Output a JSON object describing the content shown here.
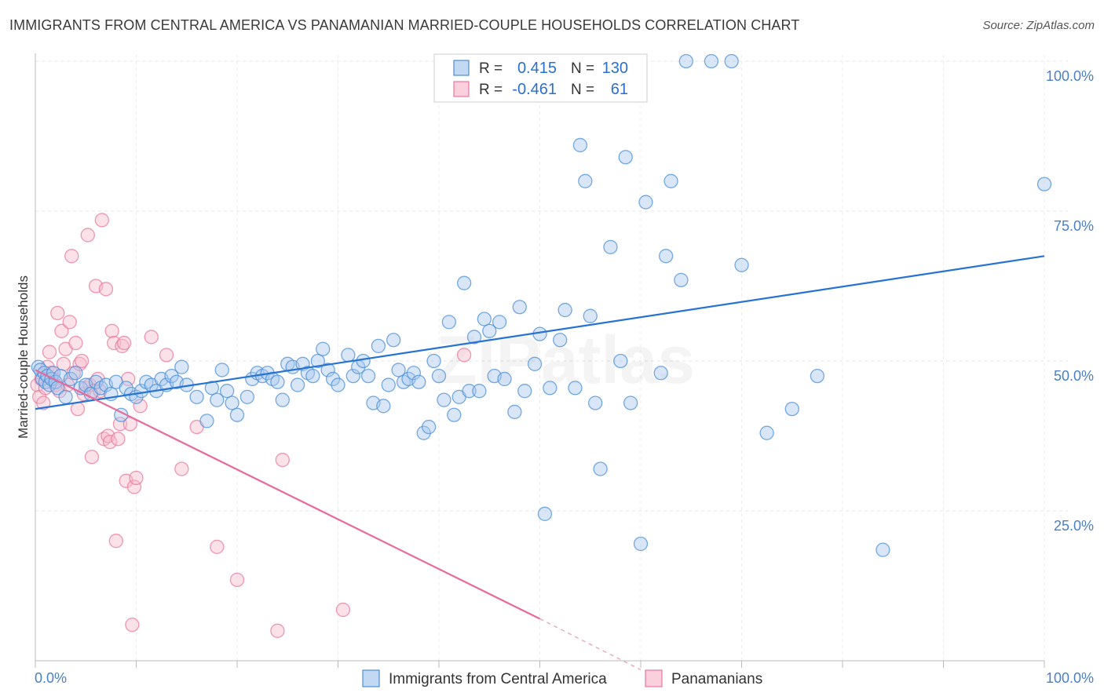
{
  "title": "IMMIGRANTS FROM CENTRAL AMERICA VS PANAMANIAN MARRIED-COUPLE HOUSEHOLDS CORRELATION CHART",
  "source": "Source: ZipAtlas.com",
  "watermark": "ZIPatlas",
  "colors": {
    "blue": "#4a8fd8",
    "blue_fill": "#a9c8ee",
    "blue_line": "#2673d3",
    "pink": "#e8779c",
    "pink_fill": "#f6bccd",
    "pink_line": "#e8699a",
    "tick_label": "#4a7fc6",
    "grid": "#e4e4e4"
  },
  "legend_top": {
    "rows": [
      {
        "r_label": "R =",
        "r_value": "0.415",
        "n_label": "N =",
        "n_value": "130",
        "color": "blue"
      },
      {
        "r_label": "R =",
        "r_value": "-0.461",
        "n_label": "N =",
        "n_value": "61",
        "color": "pink"
      }
    ]
  },
  "legend_bottom": {
    "items": [
      {
        "label": "Immigrants from Central America",
        "color": "blue"
      },
      {
        "label": "Panamanians",
        "color": "pink"
      }
    ]
  },
  "chart_data": {
    "type": "scatter",
    "title": "IMMIGRANTS FROM CENTRAL AMERICA VS PANAMANIAN MARRIED-COUPLE HOUSEHOLDS CORRELATION CHART",
    "xlabel": "",
    "ylabel": "Married-couple Households",
    "xlim": [
      0,
      100
    ],
    "ylim": [
      0,
      102
    ],
    "x_tick_labels": [
      {
        "value": 0,
        "label": "0.0%"
      },
      {
        "value": 100,
        "label": "100.0%"
      }
    ],
    "y_tick_labels": [
      {
        "value": 25,
        "label": "25.0%"
      },
      {
        "value": 50,
        "label": "50.0%"
      },
      {
        "value": 75,
        "label": "75.0%"
      },
      {
        "value": 100,
        "label": "100.0%"
      }
    ],
    "grid": true,
    "legend_position": "top-center",
    "series": [
      {
        "name": "Immigrants from Central America",
        "color": "blue",
        "trend": {
          "x": [
            0,
            100
          ],
          "y": [
            42.0,
            67.5
          ],
          "solid_to": 100
        },
        "points": [
          [
            0.3,
            49
          ],
          [
            0.5,
            48.5
          ],
          [
            0.7,
            47
          ],
          [
            0.9,
            48
          ],
          [
            1.0,
            46.5
          ],
          [
            1.2,
            47.5
          ],
          [
            1.4,
            46
          ],
          [
            1.6,
            47
          ],
          [
            1.8,
            48
          ],
          [
            2.0,
            46.5
          ],
          [
            2.2,
            45.5
          ],
          [
            2.5,
            47.5
          ],
          [
            3.0,
            44
          ],
          [
            3.5,
            47
          ],
          [
            4.0,
            48
          ],
          [
            4.5,
            45.5
          ],
          [
            5.0,
            46
          ],
          [
            5.5,
            44.5
          ],
          [
            6.0,
            46.5
          ],
          [
            6.5,
            45.5
          ],
          [
            7.0,
            46
          ],
          [
            7.5,
            44.5
          ],
          [
            8.0,
            46.5
          ],
          [
            8.5,
            41
          ],
          [
            9.0,
            45.5
          ],
          [
            9.5,
            44.5
          ],
          [
            10.0,
            44
          ],
          [
            10.5,
            45
          ],
          [
            11.0,
            46.5
          ],
          [
            11.5,
            46
          ],
          [
            12.0,
            45
          ],
          [
            12.5,
            47
          ],
          [
            13.0,
            46
          ],
          [
            13.5,
            47.5
          ],
          [
            14.0,
            46.5
          ],
          [
            14.5,
            49
          ],
          [
            15.0,
            46
          ],
          [
            16.0,
            44
          ],
          [
            17.0,
            40
          ],
          [
            17.5,
            45.5
          ],
          [
            18.0,
            43.5
          ],
          [
            18.5,
            48.5
          ],
          [
            19.0,
            45
          ],
          [
            19.5,
            43
          ],
          [
            20.0,
            41
          ],
          [
            21.0,
            44
          ],
          [
            21.5,
            47
          ],
          [
            22.0,
            48
          ],
          [
            22.5,
            47.5
          ],
          [
            23.0,
            48
          ],
          [
            23.5,
            47
          ],
          [
            24.0,
            46.5
          ],
          [
            24.5,
            43.5
          ],
          [
            25.0,
            49.5
          ],
          [
            25.5,
            49
          ],
          [
            26.0,
            46
          ],
          [
            26.5,
            49.5
          ],
          [
            27.0,
            48
          ],
          [
            27.5,
            47.5
          ],
          [
            28.0,
            50
          ],
          [
            28.5,
            52
          ],
          [
            29.0,
            48.5
          ],
          [
            29.5,
            47
          ],
          [
            30.0,
            46
          ],
          [
            31.0,
            51
          ],
          [
            31.5,
            47.5
          ],
          [
            32.0,
            49
          ],
          [
            32.5,
            50
          ],
          [
            33.0,
            47.5
          ],
          [
            33.5,
            43
          ],
          [
            34.0,
            52.5
          ],
          [
            34.5,
            42.5
          ],
          [
            35.0,
            46
          ],
          [
            35.5,
            53.5
          ],
          [
            36.0,
            48.5
          ],
          [
            36.5,
            46.5
          ],
          [
            37.0,
            47
          ],
          [
            37.5,
            48
          ],
          [
            38.0,
            46.5
          ],
          [
            38.5,
            38
          ],
          [
            39.0,
            39
          ],
          [
            39.5,
            50
          ],
          [
            40.0,
            47.5
          ],
          [
            40.5,
            43.5
          ],
          [
            41.0,
            56.5
          ],
          [
            41.5,
            41
          ],
          [
            42.0,
            44
          ],
          [
            42.5,
            63
          ],
          [
            43.0,
            45
          ],
          [
            43.5,
            54
          ],
          [
            44.0,
            45
          ],
          [
            44.5,
            57
          ],
          [
            45.0,
            55
          ],
          [
            45.5,
            47.5
          ],
          [
            46.0,
            56.5
          ],
          [
            46.5,
            47
          ],
          [
            47.5,
            41.5
          ],
          [
            48.0,
            59
          ],
          [
            48.5,
            45
          ],
          [
            49.5,
            49.5
          ],
          [
            50.0,
            54.5
          ],
          [
            50.5,
            24.5
          ],
          [
            51.0,
            45.5
          ],
          [
            52.0,
            53.5
          ],
          [
            52.5,
            58.5
          ],
          [
            53.5,
            45.5
          ],
          [
            54.0,
            86
          ],
          [
            54.5,
            80
          ],
          [
            55.0,
            57.5
          ],
          [
            55.5,
            43
          ],
          [
            56.0,
            32
          ],
          [
            57.0,
            69
          ],
          [
            58.0,
            50
          ],
          [
            58.5,
            84
          ],
          [
            59.0,
            43
          ],
          [
            60.0,
            19.5
          ],
          [
            60.5,
            76.5
          ],
          [
            62.0,
            48
          ],
          [
            62.5,
            67.5
          ],
          [
            63.0,
            80
          ],
          [
            64.0,
            63.5
          ],
          [
            64.5,
            100
          ],
          [
            67.0,
            100
          ],
          [
            69.0,
            100
          ],
          [
            70.0,
            66
          ],
          [
            72.5,
            38
          ],
          [
            75.0,
            42
          ],
          [
            77.5,
            47.5
          ],
          [
            84.0,
            18.5
          ],
          [
            100,
            79.5
          ]
        ]
      },
      {
        "name": "Panamanians",
        "color": "pink",
        "trend": {
          "x": [
            0,
            50,
            60
          ],
          "y": [
            48.5,
            7.0,
            -1.5
          ],
          "solid_to": 50
        },
        "points": [
          [
            0.2,
            46
          ],
          [
            0.4,
            44
          ],
          [
            0.6,
            47
          ],
          [
            0.8,
            43
          ],
          [
            1.0,
            45.5
          ],
          [
            1.2,
            49
          ],
          [
            1.4,
            51.5
          ],
          [
            1.6,
            48
          ],
          [
            1.8,
            47
          ],
          [
            2.0,
            46
          ],
          [
            2.2,
            58
          ],
          [
            2.4,
            45
          ],
          [
            2.6,
            55
          ],
          [
            2.8,
            49.5
          ],
          [
            3.0,
            52
          ],
          [
            3.2,
            46
          ],
          [
            3.4,
            56.5
          ],
          [
            3.6,
            67.5
          ],
          [
            3.8,
            48
          ],
          [
            4.0,
            53
          ],
          [
            4.2,
            42
          ],
          [
            4.4,
            49.5
          ],
          [
            4.6,
            50
          ],
          [
            4.8,
            44.5
          ],
          [
            5.0,
            45.5
          ],
          [
            5.2,
            71
          ],
          [
            5.4,
            46
          ],
          [
            5.6,
            34
          ],
          [
            5.8,
            45
          ],
          [
            6.0,
            62.5
          ],
          [
            6.2,
            47
          ],
          [
            6.4,
            45
          ],
          [
            6.6,
            73.5
          ],
          [
            6.8,
            37
          ],
          [
            7.0,
            62
          ],
          [
            7.2,
            37.5
          ],
          [
            7.4,
            36.5
          ],
          [
            7.6,
            55
          ],
          [
            7.8,
            53
          ],
          [
            8.0,
            20
          ],
          [
            8.2,
            37
          ],
          [
            8.4,
            39.5
          ],
          [
            8.6,
            52.5
          ],
          [
            8.8,
            53
          ],
          [
            9.0,
            30
          ],
          [
            9.2,
            47
          ],
          [
            9.4,
            39.5
          ],
          [
            9.6,
            6
          ],
          [
            9.8,
            29
          ],
          [
            10.0,
            30.5
          ],
          [
            10.4,
            42.5
          ],
          [
            11.5,
            54
          ],
          [
            13.0,
            51
          ],
          [
            14.5,
            32
          ],
          [
            16.0,
            39
          ],
          [
            18.0,
            19
          ],
          [
            20.0,
            13.5
          ],
          [
            24.0,
            5
          ],
          [
            24.5,
            33.5
          ],
          [
            30.5,
            8.5
          ],
          [
            42.5,
            51
          ]
        ]
      }
    ]
  }
}
